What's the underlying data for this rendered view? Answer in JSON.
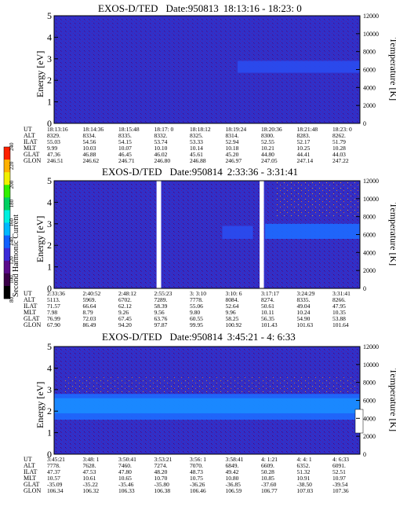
{
  "colorbar": {
    "label": "Second Harmonic Current",
    "ticks": [
      "80",
      "100",
      "120",
      "140",
      "160",
      "180",
      "200",
      "220",
      "240"
    ],
    "colors": [
      "#000000",
      "#3a0048",
      "#5a0a8a",
      "#3a2ad8",
      "#1060ff",
      "#00b8ff",
      "#00f0e0",
      "#00d060",
      "#30f000",
      "#f0f000",
      "#ffb000",
      "#ff2000"
    ]
  },
  "panels": [
    {
      "title": "EXOS-D/TED",
      "date": "Date:950813",
      "time_range": "18:13:16 - 18:23: 0",
      "ylabel_left": "Energy [eV]",
      "ylabel_right": "Temperature [K]",
      "ut_label": "UT",
      "alt_label": "ALT",
      "ilat_label": "ILAT",
      "mlt_label": "MLT",
      "glat_label": "GLAT",
      "glon_label": "GLON",
      "ut": [
        "18:13:16",
        "18:14:36",
        "18:15:48",
        "18:17: 0",
        "18:18:12",
        "18:19:24",
        "18:20:36",
        "18:21:48",
        "18:23: 0"
      ],
      "alt": [
        "8329.",
        "8334.",
        "8335.",
        "8332.",
        "8325.",
        "8314.",
        "8300.",
        "8283.",
        "8262."
      ],
      "ilat": [
        "55.03",
        "54.56",
        "54.15",
        "53.74",
        "53.33",
        "52.94",
        "52.55",
        "52.17",
        "51.79"
      ],
      "mlt": [
        "9.99",
        "10.03",
        "10.07",
        "10.10",
        "10.14",
        "10.18",
        "10.21",
        "10.25",
        "10.28"
      ],
      "glat": [
        "47.36",
        "46.88",
        "46.45",
        "46.02",
        "45.61",
        "45.20",
        "44.80",
        "44.41",
        "44.03"
      ],
      "glon": [
        "246.51",
        "246.62",
        "246.71",
        "246.80",
        "246.88",
        "246.97",
        "247.05",
        "247.14",
        "247.22"
      ]
    },
    {
      "title": "EXOS-D/TED",
      "date": "Date:950814",
      "time_range": "2:33:36 - 3:31:41",
      "ylabel_left": "Energy [eV]",
      "ylabel_right": "Temperature [K]",
      "ut_label": "UT",
      "alt_label": "ALT",
      "ilat_label": "ILAT",
      "mlt_label": "MLT",
      "glat_label": "GLAT",
      "glon_label": "GLON",
      "ut": [
        "2:33:36",
        "2:40:52",
        "2:48:12",
        "2:55:23",
        "3: 3:10",
        "3:10: 6",
        "3:17:17",
        "3:24:29",
        "3:31:41"
      ],
      "alt": [
        "5113.",
        "5969.",
        "6702.",
        "7289.",
        "7778.",
        "8084.",
        "8274.",
        "8335.",
        "8266."
      ],
      "ilat": [
        "71.57",
        "66.64",
        "62.12",
        "58.39",
        "55.06",
        "52.64",
        "50.61",
        "49.04",
        "47.95"
      ],
      "mlt": [
        "7.98",
        "8.79",
        "9.26",
        "9.56",
        "9.80",
        "9.96",
        "10.11",
        "10.24",
        "10.35"
      ],
      "glat": [
        "76.99",
        "72.03",
        "67.45",
        "63.76",
        "60.55",
        "58.25",
        "56.35",
        "54.90",
        "53.88"
      ],
      "glon": [
        "67.90",
        "86.49",
        "94.20",
        "97.87",
        "99.95",
        "100.92",
        "101.43",
        "101.63",
        "101.64"
      ]
    },
    {
      "title": "EXOS-D/TED",
      "date": "Date:950814",
      "time_range": "3:45:21 - 4: 6:33",
      "ylabel_left": "Energy [eV]",
      "ylabel_right": "Temperature [K]",
      "ut_label": "UT",
      "alt_label": "ALT",
      "ilat_label": "ILAT",
      "mlt_label": "MLT",
      "glat_label": "GLAT",
      "glon_label": "GLON",
      "ut": [
        "3:45:21",
        "3:48: 1",
        "3:50:41",
        "3:53:21",
        "3:56: 1",
        "3:58:41",
        "4: 1:21",
        "4: 4: 1",
        "4: 6:33"
      ],
      "alt": [
        "7778.",
        "7628.",
        "7460.",
        "7274.",
        "7070.",
        "6849.",
        "6609.",
        "6352.",
        "6091."
      ],
      "ilat": [
        "47.37",
        "47.53",
        "47.80",
        "48.20",
        "48.73",
        "49.42",
        "50.28",
        "51.32",
        "52.51"
      ],
      "mlt": [
        "10.57",
        "10.61",
        "10.65",
        "10.70",
        "10.75",
        "10.80",
        "10.85",
        "10.91",
        "10.97"
      ],
      "glat": [
        "-35.09",
        "-35.22",
        "-35.46",
        "-35.80",
        "-36.26",
        "-36.85",
        "-37.60",
        "-38.50",
        "-39.54"
      ],
      "glon": [
        "106.34",
        "106.32",
        "106.33",
        "106.38",
        "106.46",
        "106.59",
        "106.77",
        "107.03",
        "107.36"
      ]
    }
  ],
  "chart_data": [
    {
      "type": "heatmap",
      "title": "EXOS-D/TED Date:950813 18:13:16 - 18:23: 0",
      "ylabel": "Energy [eV]",
      "ylabel_right": "Temperature [K]",
      "ylim": [
        0,
        5
      ],
      "yticks": [
        0,
        1,
        2,
        3,
        4,
        5
      ],
      "ylim_right": [
        0,
        12000
      ],
      "yticks_right": [
        0,
        2000,
        4000,
        6000,
        8000,
        10000,
        12000
      ],
      "colorbar_label": "Second Harmonic Current",
      "colorbar_range": [
        80,
        240
      ],
      "bands": [
        {
          "energy_range": [
            2.35,
            2.9
          ],
          "x_range": [
            0.6,
            1.0
          ],
          "level": 125
        }
      ],
      "data_gaps": []
    },
    {
      "type": "heatmap",
      "title": "EXOS-D/TED Date:950814 2:33:36 - 3:31:41",
      "ylabel": "Energy [eV]",
      "ylabel_right": "Temperature [K]",
      "ylim": [
        0,
        5
      ],
      "yticks": [
        0,
        1,
        2,
        3,
        4,
        5
      ],
      "ylim_right": [
        0,
        12000
      ],
      "yticks_right": [
        0,
        2000,
        4000,
        6000,
        8000,
        10000,
        12000
      ],
      "colorbar_label": "Second Harmonic Current",
      "colorbar_range": [
        80,
        240
      ],
      "bands": [
        {
          "energy_range": [
            2.3,
            3.0
          ],
          "x_range": [
            0.69,
            1.0
          ],
          "level": 135
        },
        {
          "energy_range": [
            2.3,
            2.9
          ],
          "x_range": [
            0.55,
            0.65
          ],
          "level": 118
        }
      ],
      "data_gaps": [
        [
          0.335,
          0.35
        ],
        [
          0.672,
          0.686
        ]
      ]
    },
    {
      "type": "heatmap",
      "title": "EXOS-D/TED Date:950814 3:45:21 - 4: 6:33",
      "ylabel": "Energy [eV]",
      "ylabel_right": "Temperature [K]",
      "ylim": [
        0,
        5
      ],
      "yticks": [
        0,
        1,
        2,
        3,
        4,
        5
      ],
      "ylim_right": [
        0,
        12000
      ],
      "yticks_right": [
        0,
        2000,
        4000,
        6000,
        8000,
        10000,
        12000
      ],
      "colorbar_label": "Second Harmonic Current",
      "colorbar_range": [
        80,
        240
      ],
      "bands": [
        {
          "energy_range": [
            1.6,
            2.8
          ],
          "x_range": [
            0.0,
            1.0
          ],
          "level": 135
        },
        {
          "energy_range": [
            1.9,
            2.6
          ],
          "x_range": [
            0.0,
            1.0
          ],
          "level": 150
        }
      ],
      "data_gaps": []
    }
  ]
}
